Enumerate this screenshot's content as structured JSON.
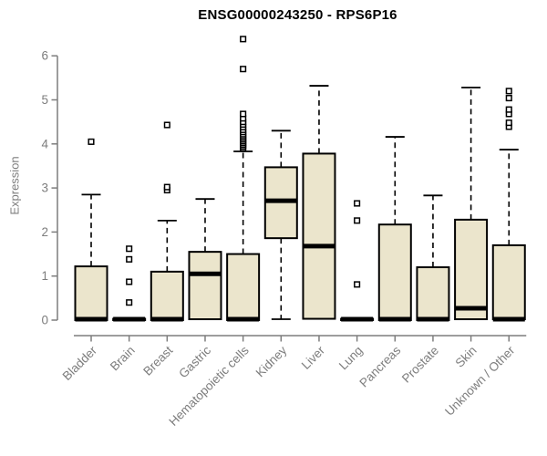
{
  "title": "ENSG00000243250 - RPS6P16",
  "chart_data": {
    "type": "boxplot",
    "title": "ENSG00000243250 - RPS6P16",
    "xlabel": "",
    "ylabel": "Expression",
    "ylim": [
      0,
      6.45
    ],
    "yticks": [
      0,
      1,
      2,
      3,
      4,
      5,
      6
    ],
    "grid": false,
    "legend": "none",
    "colors": {
      "box_fill": "#EBE5CC",
      "box_border": "#000000",
      "median": "#000000",
      "axis": "#7d7d7d",
      "tick_label": "#7d7d7d",
      "title": "#000000",
      "background": "#ffffff"
    },
    "categories": [
      "Bladder",
      "Brain",
      "Breast",
      "Gastric",
      "Hematopoietic cells",
      "Kidney",
      "Liver",
      "Lung",
      "Pancreas",
      "Prostate",
      "Skin",
      "Unknown / Other"
    ],
    "series": [
      {
        "label": "Bladder",
        "low": 0,
        "q1": 0,
        "median": 0.02,
        "q3": 1.22,
        "high": 2.85,
        "outliers": [
          4.05
        ]
      },
      {
        "label": "Brain",
        "low": 0,
        "q1": 0,
        "median": 0.02,
        "q3": 0.03,
        "high": 0.03,
        "outliers": [
          0.4,
          0.87,
          1.38,
          1.62
        ]
      },
      {
        "label": "Breast",
        "low": 0,
        "q1": 0,
        "median": 0.02,
        "q3": 1.1,
        "high": 2.26,
        "outliers": [
          2.95,
          3.02,
          4.43
        ]
      },
      {
        "label": "Gastric",
        "low": 0.02,
        "q1": 0.02,
        "median": 1.05,
        "q3": 1.55,
        "high": 2.75,
        "outliers": []
      },
      {
        "label": "Hematopoietic cells",
        "low": 0,
        "q1": 0,
        "median": 0.02,
        "q3": 1.5,
        "high": 3.83,
        "outliers": [
          3.9,
          3.94,
          3.98,
          4.02,
          4.06,
          4.1,
          4.14,
          4.18,
          4.22,
          4.27,
          4.32,
          4.38,
          4.44,
          4.5,
          4.58,
          4.68,
          5.7,
          6.38
        ]
      },
      {
        "label": "Kidney",
        "low": 0.02,
        "q1": 1.86,
        "median": 2.71,
        "q3": 3.47,
        "high": 4.3,
        "outliers": []
      },
      {
        "label": "Liver",
        "low": 0.03,
        "q1": 0.03,
        "median": 1.68,
        "q3": 3.78,
        "high": 5.32,
        "outliers": []
      },
      {
        "label": "Lung",
        "low": 0,
        "q1": 0,
        "median": 0.02,
        "q3": 0.03,
        "high": 0.03,
        "outliers": [
          0.81,
          2.26,
          2.65
        ]
      },
      {
        "label": "Pancreas",
        "low": 0,
        "q1": 0,
        "median": 0.02,
        "q3": 2.17,
        "high": 4.16,
        "outliers": []
      },
      {
        "label": "Prostate",
        "low": 0,
        "q1": 0,
        "median": 0.02,
        "q3": 1.2,
        "high": 2.83,
        "outliers": []
      },
      {
        "label": "Skin",
        "low": 0.02,
        "q1": 0.02,
        "median": 0.27,
        "q3": 2.28,
        "high": 5.28,
        "outliers": []
      },
      {
        "label": "Unknown / Other",
        "low": 0.02,
        "q1": 0.02,
        "median": 0.02,
        "q3": 1.7,
        "high": 3.87,
        "outliers": [
          4.39,
          4.48,
          4.68,
          4.78,
          5.04,
          5.2
        ]
      }
    ]
  }
}
